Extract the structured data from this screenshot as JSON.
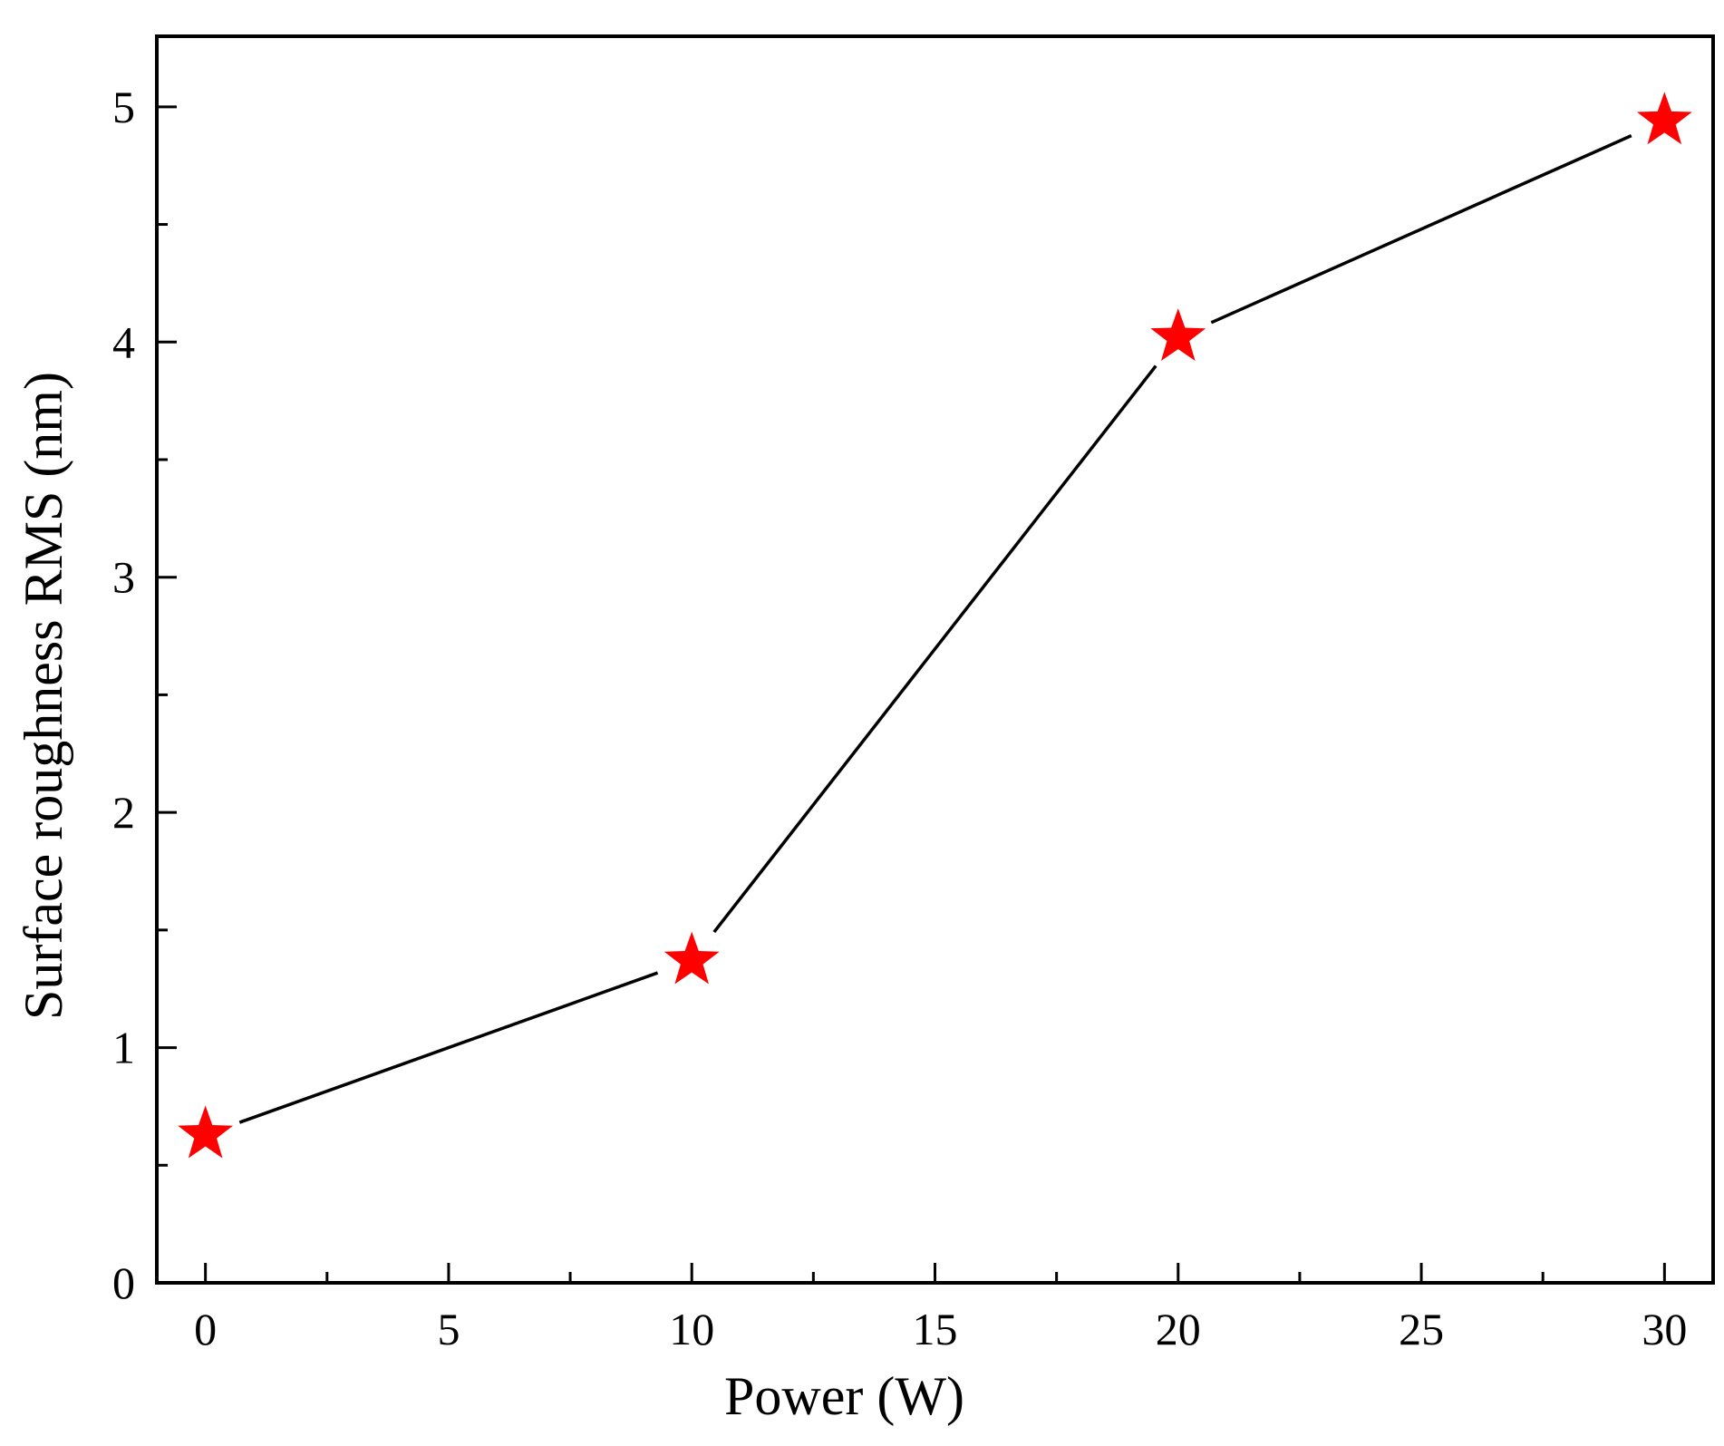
{
  "chart_data": {
    "type": "line",
    "xlabel": "Power (W)",
    "ylabel": "Surface roughness RMS (nm)",
    "xlim": [
      -1,
      31
    ],
    "ylim": [
      0,
      5.3
    ],
    "x_ticks": [
      0,
      5,
      10,
      15,
      20,
      25,
      30
    ],
    "x_tick_labels": [
      "0",
      "5",
      "10",
      "15",
      "20",
      "25",
      "30"
    ],
    "y_ticks": [
      0,
      1,
      2,
      3,
      4,
      5
    ],
    "y_tick_labels": [
      "0",
      "1",
      "2",
      "3",
      "4",
      "5"
    ],
    "x_minor_step": 2.5,
    "y_minor_step": 0.5,
    "grid": false,
    "series": [
      {
        "x": [
          0,
          10,
          20,
          30
        ],
        "values": [
          0.63,
          1.37,
          4.02,
          4.94
        ],
        "marker": "star",
        "marker_color": "#ff0000",
        "line_color": "#000000"
      }
    ]
  }
}
